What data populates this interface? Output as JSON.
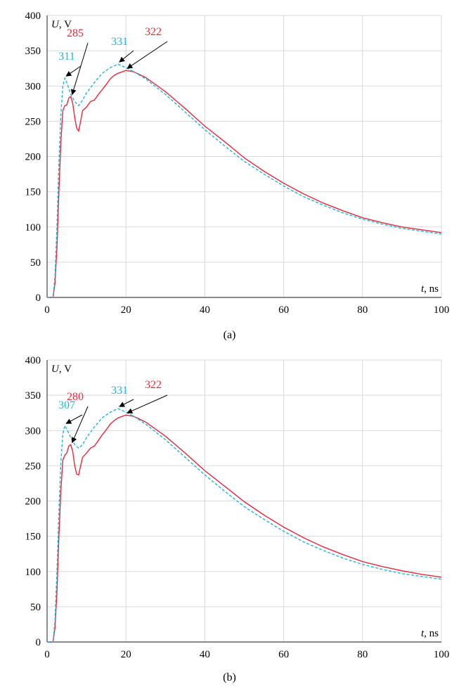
{
  "colors": {
    "red": "#e8283c",
    "cyan": "#1fb5dd",
    "grid": "#d9d9d9",
    "axis": "#444444",
    "arrow": "#000000"
  },
  "chart_data": [
    {
      "type": "line",
      "caption": "(a)",
      "ylabel": "U, V",
      "xlabel": "t, ns",
      "xlim": [
        0,
        100
      ],
      "ylim": [
        0,
        400
      ],
      "xticks": [
        "0",
        "20",
        "40",
        "60",
        "80",
        "100"
      ],
      "yticks": [
        "0",
        "50",
        "100",
        "150",
        "200",
        "250",
        "300",
        "350",
        "400"
      ],
      "grid": true,
      "series": [
        {
          "color": "#e8283c",
          "style": "solid",
          "points": [
            [
              0,
              0
            ],
            [
              1.5,
              0
            ],
            [
              2,
              20
            ],
            [
              2.5,
              70
            ],
            [
              3,
              150
            ],
            [
              3.5,
              220
            ],
            [
              4,
              265
            ],
            [
              4.5,
              272
            ],
            [
              5,
              273
            ],
            [
              5.5,
              283
            ],
            [
              6,
              285
            ],
            [
              6.5,
              275
            ],
            [
              7,
              255
            ],
            [
              7.5,
              240
            ],
            [
              8,
              236
            ],
            [
              8.5,
              250
            ],
            [
              9,
              265
            ],
            [
              10,
              270
            ],
            [
              11,
              278
            ],
            [
              12,
              280
            ],
            [
              13,
              288
            ],
            [
              14,
              295
            ],
            [
              15,
              302
            ],
            [
              16,
              310
            ],
            [
              17,
              315
            ],
            [
              18,
              318
            ],
            [
              20,
              322
            ],
            [
              22,
              320
            ],
            [
              25,
              312
            ],
            [
              30,
              292
            ],
            [
              35,
              268
            ],
            [
              40,
              243
            ],
            [
              45,
              221
            ],
            [
              50,
              198
            ],
            [
              55,
              179
            ],
            [
              60,
              162
            ],
            [
              65,
              147
            ],
            [
              70,
              134
            ],
            [
              75,
              123
            ],
            [
              80,
              113
            ],
            [
              85,
              106
            ],
            [
              90,
              100
            ],
            [
              95,
              96
            ],
            [
              100,
              92
            ]
          ]
        },
        {
          "color": "#1fb5dd",
          "style": "dashed",
          "points": [
            [
              0,
              0
            ],
            [
              1.5,
              0
            ],
            [
              2,
              30
            ],
            [
              2.5,
              100
            ],
            [
              3,
              190
            ],
            [
              3.5,
              260
            ],
            [
              4,
              300
            ],
            [
              4.5,
              311
            ],
            [
              5,
              305
            ],
            [
              6,
              288
            ],
            [
              7,
              278
            ],
            [
              8,
              272
            ],
            [
              9,
              280
            ],
            [
              10,
              290
            ],
            [
              12,
              305
            ],
            [
              14,
              318
            ],
            [
              16,
              326
            ],
            [
              18,
              331
            ],
            [
              20,
              326
            ],
            [
              22,
              320
            ],
            [
              25,
              310
            ],
            [
              30,
              288
            ],
            [
              35,
              263
            ],
            [
              40,
              238
            ],
            [
              45,
              215
            ],
            [
              50,
              193
            ],
            [
              55,
              175
            ],
            [
              60,
              158
            ],
            [
              65,
              143
            ],
            [
              70,
              131
            ],
            [
              75,
              120
            ],
            [
              80,
              111
            ],
            [
              85,
              104
            ],
            [
              90,
              98
            ],
            [
              95,
              94
            ],
            [
              100,
              90
            ]
          ]
        }
      ],
      "annotations": [
        {
          "label": "311",
          "color": "cyan",
          "x": 4.5,
          "y": 311
        },
        {
          "label": "285",
          "color": "red",
          "x": 6,
          "y": 285
        },
        {
          "label": "331",
          "color": "cyan",
          "x": 18,
          "y": 331
        },
        {
          "label": "322",
          "color": "red",
          "x": 20,
          "y": 322
        }
      ]
    },
    {
      "type": "line",
      "caption": "(b)",
      "ylabel": "U, V",
      "xlabel": "t, ns",
      "xlim": [
        0,
        100
      ],
      "ylim": [
        0,
        400
      ],
      "xticks": [
        "0",
        "20",
        "40",
        "60",
        "80",
        "100"
      ],
      "yticks": [
        "0",
        "50",
        "100",
        "150",
        "200",
        "250",
        "300",
        "350",
        "400"
      ],
      "grid": true,
      "series": [
        {
          "color": "#e8283c",
          "style": "solid",
          "points": [
            [
              0,
              0
            ],
            [
              1.5,
              0
            ],
            [
              2,
              20
            ],
            [
              2.5,
              70
            ],
            [
              3,
              150
            ],
            [
              3.5,
              215
            ],
            [
              4,
              258
            ],
            [
              4.5,
              265
            ],
            [
              5,
              268
            ],
            [
              5.5,
              278
            ],
            [
              6,
              280
            ],
            [
              6.5,
              270
            ],
            [
              7,
              250
            ],
            [
              7.5,
              238
            ],
            [
              8,
              237
            ],
            [
              8.5,
              250
            ],
            [
              9,
              262
            ],
            [
              10,
              268
            ],
            [
              11,
              275
            ],
            [
              12,
              278
            ],
            [
              13,
              286
            ],
            [
              14,
              294
            ],
            [
              15,
              301
            ],
            [
              16,
              309
            ],
            [
              17,
              314
            ],
            [
              18,
              318
            ],
            [
              20,
              322
            ],
            [
              22,
              320
            ],
            [
              25,
              312
            ],
            [
              30,
              292
            ],
            [
              35,
              268
            ],
            [
              40,
              243
            ],
            [
              45,
              221
            ],
            [
              50,
              199
            ],
            [
              55,
              180
            ],
            [
              60,
              163
            ],
            [
              65,
              148
            ],
            [
              70,
              135
            ],
            [
              75,
              124
            ],
            [
              80,
              114
            ],
            [
              85,
              107
            ],
            [
              90,
              101
            ],
            [
              95,
              96
            ],
            [
              100,
              92
            ]
          ]
        },
        {
          "color": "#1fb5dd",
          "style": "dashed",
          "points": [
            [
              0,
              0
            ],
            [
              1.5,
              0
            ],
            [
              2,
              30
            ],
            [
              2.5,
              100
            ],
            [
              3,
              185
            ],
            [
              3.5,
              255
            ],
            [
              4,
              295
            ],
            [
              4.5,
              307
            ],
            [
              5,
              302
            ],
            [
              6,
              290
            ],
            [
              7,
              280
            ],
            [
              8,
              275
            ],
            [
              9,
              280
            ],
            [
              10,
              290
            ],
            [
              12,
              305
            ],
            [
              14,
              318
            ],
            [
              16,
              326
            ],
            [
              18,
              331
            ],
            [
              20,
              326
            ],
            [
              22,
              320
            ],
            [
              25,
              309
            ],
            [
              30,
              287
            ],
            [
              35,
              262
            ],
            [
              40,
              237
            ],
            [
              45,
              214
            ],
            [
              50,
              192
            ],
            [
              55,
              174
            ],
            [
              60,
              157
            ],
            [
              65,
              142
            ],
            [
              70,
              130
            ],
            [
              75,
              119
            ],
            [
              80,
              110
            ],
            [
              85,
              103
            ],
            [
              90,
              97
            ],
            [
              95,
              93
            ],
            [
              100,
              89
            ]
          ]
        }
      ],
      "annotations": [
        {
          "label": "307",
          "color": "cyan",
          "x": 4.5,
          "y": 307
        },
        {
          "label": "280",
          "color": "red",
          "x": 6,
          "y": 280
        },
        {
          "label": "331",
          "color": "cyan",
          "x": 18,
          "y": 331
        },
        {
          "label": "322",
          "color": "red",
          "x": 20,
          "y": 322
        }
      ]
    }
  ]
}
